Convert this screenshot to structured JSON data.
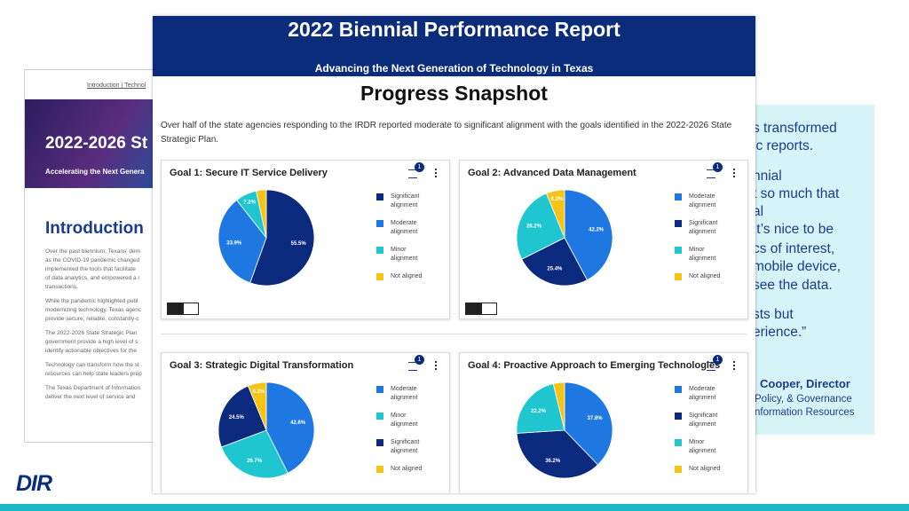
{
  "background_page": {
    "nav": "Introduction | Technol",
    "banner_title": "2022-2026 St",
    "banner_subtitle": "Accelerating the Next Genera",
    "heading": "Introduction",
    "paragraphs": [
      "Over the past biennium, Texans' dem\nas the COVID-19 pandemic changed\nimplemented the tools that facilitate\nof data analytics, and empowered a r\ntransactions.",
      "While the pandemic highlighted publ\nmodernizing technology. Texas agenc\nprovide secure, reliable, constantly-c",
      "The 2022-2026 State Strategic Plan\ngovernment provide a high level of s\nidentify actionable objectives for the",
      "Technology can transform how the st\nresources can help state leaders prep",
      "The Texas Department of Information\ndeliver the next level of service and"
    ]
  },
  "quote": {
    "lines": [
      "s transformed",
      "ic reports.",
      "nnial",
      "t so much that",
      "al",
      "It’s nice to be",
      "cs of interest,",
      "mobile device,",
      "see the data.",
      "sts but",
      "erience.”"
    ],
    "name": "Cooper, Director",
    "org": [
      "Policy, & Governance",
      "nformation Resources"
    ]
  },
  "logo": "DIR",
  "report": {
    "title": "2022 Biennial Performance Report",
    "subtitle": "Advancing the Next Generation of Technology in Texas",
    "heading": "Progress Snapshot",
    "intro": "Over half of the state agencies responding to the IRDR reported moderate to significant alignment with the goals identified in the 2022-2026 State Strategic Plan."
  },
  "chart_data": [
    {
      "type": "pie",
      "title": "Goal 1: Secure IT Service Delivery",
      "filter_count": 1,
      "categories": [
        "Significant alignment",
        "Moderate alignment",
        "Minor alignment",
        "Not aligned"
      ],
      "values": [
        55.5,
        33.9,
        7.2,
        3.4
      ],
      "value_labels": [
        "55.5%",
        "33.9%",
        "7.2%",
        null
      ],
      "colors": [
        "#0b2a7d",
        "#1f78e1",
        "#1fc6cf",
        "#f6c417"
      ]
    },
    {
      "type": "pie",
      "title": "Goal 2: Advanced Data Management",
      "filter_count": 1,
      "categories": [
        "Moderate alignment",
        "Significant alignment",
        "Minor alignment",
        "Not aligned"
      ],
      "values": [
        42.2,
        25.4,
        26.2,
        6.2
      ],
      "value_labels": [
        "42.2%",
        "25.4%",
        "26.2%",
        "6.2%"
      ],
      "colors": [
        "#1f78e1",
        "#0b2a7d",
        "#1fc6cf",
        "#f6c417"
      ]
    },
    {
      "type": "pie",
      "title": "Goal 3: Strategic Digital Transformation",
      "filter_count": 1,
      "categories": [
        "Moderate alignment",
        "Minor alignment",
        "Significant alignment",
        "Not aligned"
      ],
      "values": [
        42.6,
        26.7,
        24.5,
        6.2
      ],
      "value_labels": [
        "42.6%",
        "26.7%",
        "24.5%",
        "6.2%"
      ],
      "colors": [
        "#1f78e1",
        "#1fc6cf",
        "#0b2a7d",
        "#f6c417"
      ]
    },
    {
      "type": "pie",
      "title": "Goal 4: Proactive Approach to Emerging Technologies",
      "filter_count": 1,
      "categories": [
        "Moderate alignment",
        "Significant alignment",
        "Minor alignment",
        "Not aligned"
      ],
      "values": [
        37.8,
        36.2,
        22.2,
        3.8
      ],
      "value_labels": [
        "37.8%",
        "36.2%",
        "22.2%",
        null
      ],
      "colors": [
        "#1f78e1",
        "#0b2a7d",
        "#1fc6cf",
        "#f6c417"
      ]
    }
  ]
}
